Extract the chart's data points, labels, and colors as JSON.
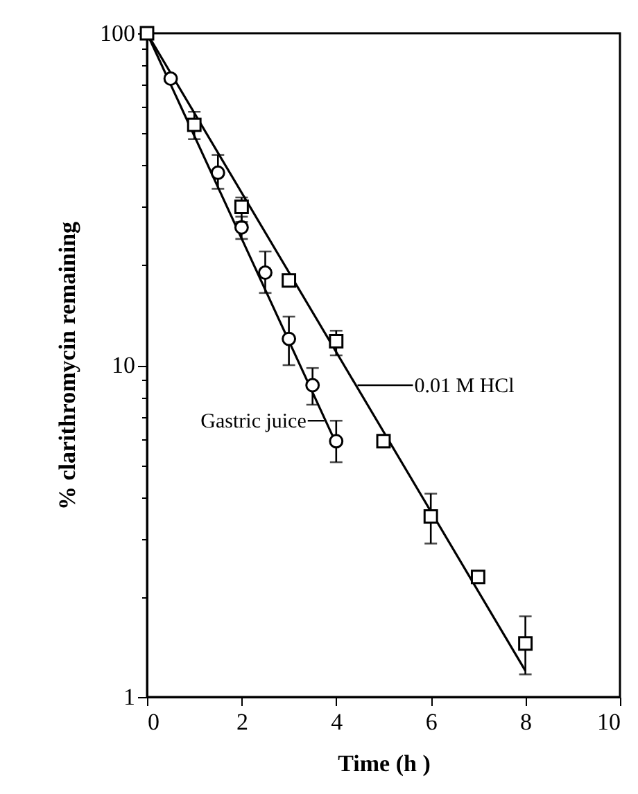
{
  "chart_data": {
    "type": "scatter",
    "xlabel": "Time (h )",
    "ylabel": "% clarithromycin remaining",
    "log": "y",
    "xlim": [
      0,
      10
    ],
    "xticks": [
      0,
      2,
      4,
      6,
      8,
      10
    ],
    "ylim": [
      1,
      100
    ],
    "yticks": [
      1,
      {
        "value": 2,
        "label": null
      },
      {
        "value": 3,
        "label": null
      },
      {
        "value": 4,
        "label": null
      },
      {
        "value": 5,
        "label": null
      },
      {
        "value": 6,
        "label": null
      },
      {
        "value": 7,
        "label": null
      },
      {
        "value": 8,
        "label": null
      },
      {
        "value": 9,
        "label": null
      },
      10,
      {
        "value": 20,
        "label": null
      },
      {
        "value": 30,
        "label": null
      },
      {
        "value": 40,
        "label": null
      },
      {
        "value": 50,
        "label": null
      },
      {
        "value": 60,
        "label": null
      },
      {
        "value": 70,
        "label": null
      },
      {
        "value": 80,
        "label": null
      },
      {
        "value": 90,
        "label": null
      },
      100
    ],
    "grid": false,
    "series": [
      {
        "marker": "circle",
        "color": "#000000",
        "x": [
          0.5,
          1.5,
          2,
          2.5,
          3,
          3.5,
          4
        ],
        "values": [
          73,
          38,
          26,
          19,
          12,
          8.7,
          5.9
        ],
        "errors": [
          null,
          [
            34,
            43
          ],
          [
            24,
            28
          ],
          [
            16.5,
            22
          ],
          [
            10,
            14
          ],
          [
            7.6,
            9.8
          ],
          [
            5.1,
            6.8
          ]
        ]
      },
      {
        "marker": "square",
        "color": "#000000",
        "x": [
          0,
          1,
          2,
          3,
          4,
          5,
          6,
          7,
          8
        ],
        "values": [
          100,
          53,
          30,
          18,
          11.8,
          5.9,
          3.5,
          2.3,
          1.45
        ],
        "errors": [
          null,
          [
            48,
            58
          ],
          [
            27,
            32
          ],
          null,
          [
            10.7,
            12.7
          ],
          null,
          [
            2.9,
            4.1
          ],
          null,
          [
            1.17,
            1.75
          ]
        ]
      },
      {
        "type": "line",
        "color": "#000000",
        "x": [
          0,
          4
        ],
        "values": [
          100,
          5.8
        ]
      },
      {
        "type": "line",
        "color": "#000000",
        "x": [
          0,
          8
        ],
        "values": [
          100,
          1.2
        ]
      }
    ],
    "annotations": [
      {
        "text": "0.01 M HCl",
        "x": 4.45,
        "y": 8.7
      },
      {
        "text": "Gastric juice",
        "x": 3.75,
        "y": 6.8
      }
    ]
  }
}
